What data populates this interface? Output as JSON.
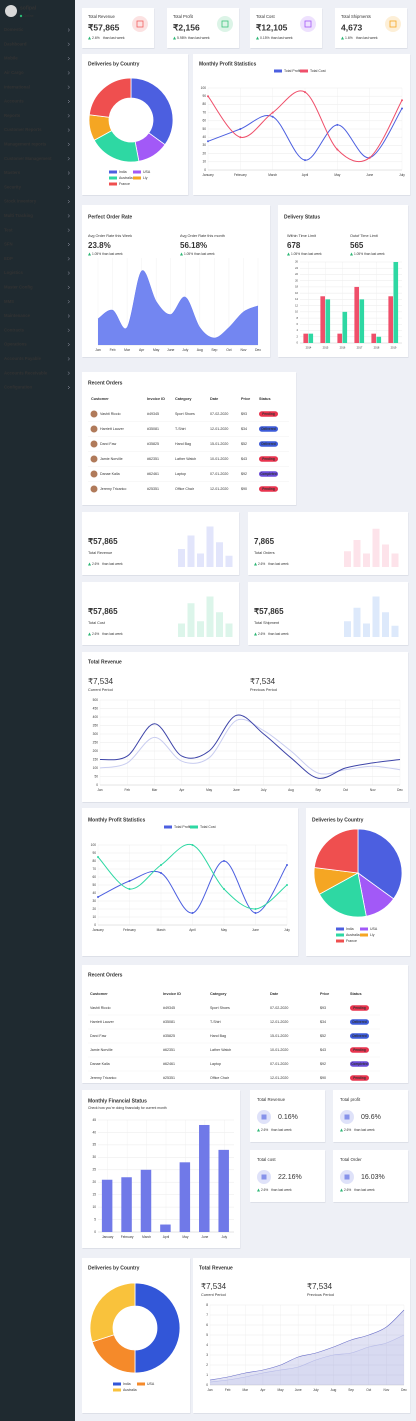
{
  "sidebar": {
    "user": "sofipal",
    "status": "Online",
    "items": [
      "Domestic",
      "Dashboard",
      "Mobile",
      "Air Cargo",
      "International",
      "Accounts",
      "Reports",
      "Customer Reports",
      "Management reports",
      "Customer Management",
      "Masters",
      "Security",
      "Stock Inventory",
      "Multi Tracking",
      "Test",
      "SFN",
      "EDP",
      "Logistics",
      "Master Config",
      "MMS",
      "Maintenance",
      "Contracts",
      "Operations",
      "Accounts Payable",
      "Accounts Receivable",
      "Configuration"
    ]
  },
  "stat_cards": [
    {
      "title": "Total Revenue",
      "value": "₹57,865",
      "change": "2.6%",
      "note": "than last week",
      "color": "#f06060"
    },
    {
      "title": "Total Profit",
      "value": "₹2,156",
      "change": "5.98%",
      "note": "than last week",
      "color": "#3cc47c"
    },
    {
      "title": "Total Cost",
      "value": "₹12,105",
      "change": "0.15%",
      "note": "than last week",
      "color": "#a259f7"
    },
    {
      "title": "Total Shipments",
      "value": "4,673",
      "change": "1.6%",
      "note": "than last week",
      "color": "#f5a623"
    }
  ],
  "deliveries_top": {
    "type": "donut",
    "title": "Deliveries by Country",
    "categories": [
      "India",
      "USA",
      "Australia",
      "Lly",
      "France"
    ],
    "values": [
      35,
      12,
      20,
      10,
      23
    ],
    "colors": [
      "#4c5fe0",
      "#a259f7",
      "#2ed8a3",
      "#f5a623",
      "#ef4f4f"
    ]
  },
  "profit_top": {
    "type": "line",
    "title": "Monthly Profit Statistics",
    "categories": [
      "January",
      "February",
      "March",
      "April",
      "May",
      "June",
      "July"
    ],
    "series": [
      {
        "name": "Total Profit",
        "color": "#4c5fe0",
        "values": [
          35,
          50,
          65,
          12,
          55,
          15,
          75
        ]
      },
      {
        "name": "Total Cost",
        "color": "#ef4f6a",
        "values": [
          90,
          40,
          70,
          95,
          25,
          15,
          85
        ]
      }
    ],
    "ylim": [
      0,
      100
    ],
    "yticks": [
      0,
      10,
      20,
      30,
      40,
      50,
      60,
      70,
      80,
      90,
      100
    ],
    "grid": true
  },
  "order_rate": {
    "type": "area",
    "title": "Perfect Order Rate",
    "metrics": [
      {
        "label": "Avg Order Rate this Week",
        "value": "23.8%",
        "change": "1.05%",
        "note": "than last week"
      },
      {
        "label": "Avg Order Rate this month",
        "value": "56.18%",
        "change": "1.05%",
        "note": "than last week"
      }
    ],
    "categories": [
      "Jan",
      "Feb",
      "Mar",
      "Apr",
      "May",
      "June",
      "July",
      "Aug",
      "Sep",
      "Oct",
      "Nov",
      "Dec"
    ],
    "values": [
      30,
      40,
      20,
      85,
      50,
      35,
      55,
      20,
      8,
      20,
      38,
      45
    ],
    "color": "#6b7ff0",
    "fill_opacity": 0.95,
    "ylim": [
      0,
      100
    ],
    "grid": true
  },
  "delivery_status": {
    "type": "bar",
    "title": "Delivery Status",
    "metrics": [
      {
        "label": "Within Time Limit",
        "value": "678",
        "change": "1.05%",
        "note": "than last week"
      },
      {
        "label": "Outof Time Limit",
        "value": "565",
        "change": "1.05%",
        "note": "than last week"
      }
    ],
    "categories": [
      "2014",
      "2015",
      "2016",
      "2017",
      "2018",
      "2019"
    ],
    "series": [
      {
        "color": "#ef4f6a",
        "values": [
          3,
          15,
          3,
          18,
          3,
          15
        ]
      },
      {
        "color": "#2ed8a3",
        "values": [
          3,
          14,
          10,
          14,
          2,
          26
        ]
      }
    ],
    "ylim": [
      0,
      26
    ],
    "yticks": [
      0,
      2,
      4,
      6,
      8,
      10,
      12,
      14,
      16,
      18,
      20,
      22,
      24,
      26
    ],
    "grid": true
  },
  "status_colors": {
    "Pending": "#e8344e",
    "Delivered": "#3d5bd9",
    "Completed": "#6a4cd9"
  },
  "orders_top": {
    "title": "Recent Orders",
    "columns": [
      "Customer",
      "Invoice ID",
      "Category",
      "Date",
      "Price",
      "Status"
    ],
    "rows": [
      [
        "Vashti Riccio",
        "#49345",
        "Sport Shoes",
        "07-02-2020",
        "$93",
        "Pending"
      ],
      [
        "Harriett Lauver",
        "#35081",
        "T-Shirt",
        "12-01-2020",
        "$34",
        "Delivered"
      ],
      [
        "Darci Faw",
        "#35825",
        "Hand Bag",
        "15-01-2020",
        "$52",
        "Delivered"
      ],
      [
        "Jamie Norville",
        "#62351",
        "Lather Watch",
        "10-01-2020",
        "$43",
        "Pending"
      ],
      [
        "Danae Kalla",
        "#62461",
        "Laptop",
        "07-01-2020",
        "$92",
        "Completed"
      ],
      [
        "Jeremy Tricarico",
        "#25351",
        "Office Chair",
        "12-01-2020",
        "$90",
        "Pending"
      ]
    ]
  },
  "mini_cards": [
    {
      "value": "₹57,865",
      "label": "Total Revenue",
      "change": "2.6%",
      "note": "than last week",
      "color": "#e2e5fb",
      "values": [
        40,
        70,
        30,
        90,
        55,
        25
      ],
      "ylim": [
        0,
        100
      ]
    },
    {
      "value": "7,865",
      "label": "Total Orders",
      "change": "2.6%",
      "note": "than last week",
      "color": "#fde3ea",
      "values": [
        35,
        60,
        30,
        85,
        50,
        30
      ],
      "ylim": [
        0,
        100
      ]
    },
    {
      "value": "₹57,865",
      "label": "Total Cost",
      "change": "2.6%",
      "note": "than last week",
      "color": "#dcf5ea",
      "values": [
        30,
        75,
        35,
        90,
        55,
        30
      ],
      "ylim": [
        0,
        100
      ]
    },
    {
      "value": "₹57,865",
      "label": "Total Shipment",
      "change": "2.6%",
      "note": "than last week",
      "color": "#dde9fb",
      "values": [
        35,
        65,
        30,
        90,
        55,
        25
      ],
      "ylim": [
        0,
        100
      ]
    }
  ],
  "revenue_full": {
    "type": "line",
    "title": "Total Revenue",
    "periods": [
      {
        "value": "₹7,534",
        "label": "Current Period"
      },
      {
        "value": "₹7,534",
        "label": "Previous Period"
      }
    ],
    "categories": [
      "Jan",
      "Feb",
      "Mar",
      "Apr",
      "May",
      "June",
      "July",
      "Aug",
      "Sep",
      "Oct",
      "Nov",
      "Dec"
    ],
    "series": [
      {
        "color": "#c9cdf0",
        "values": [
          100,
          130,
          280,
          140,
          160,
          380,
          320,
          200,
          70,
          90,
          110,
          90
        ]
      },
      {
        "color": "#3d44a8",
        "values": [
          150,
          170,
          360,
          170,
          200,
          410,
          300,
          160,
          40,
          100,
          130,
          150
        ]
      }
    ],
    "ylim": [
      0,
      500
    ],
    "yticks": [
      0,
      50,
      100,
      150,
      200,
      250,
      300,
      350,
      400,
      450,
      500
    ],
    "grid": true
  },
  "profit_mid": {
    "type": "line",
    "title": "Monthly Profit Statistics",
    "categories": [
      "January",
      "February",
      "March",
      "April",
      "May",
      "June",
      "July"
    ],
    "series": [
      {
        "name": "Total Profit",
        "color": "#4c5fe0",
        "values": [
          35,
          55,
          65,
          15,
          80,
          15,
          75
        ]
      },
      {
        "name": "Total Cost",
        "color": "#2ed8a3",
        "values": [
          85,
          45,
          75,
          100,
          45,
          20,
          50
        ]
      }
    ],
    "ylim": [
      0,
      100
    ],
    "yticks": [
      0,
      10,
      20,
      30,
      40,
      50,
      60,
      70,
      80,
      90,
      100
    ],
    "grid": true
  },
  "deliveries_mid": {
    "type": "pie",
    "title": "Deliveries by Country",
    "categories": [
      "India",
      "USA",
      "Australia",
      "Lly",
      "France"
    ],
    "values": [
      35,
      12,
      20,
      10,
      23
    ],
    "colors": [
      "#4c5fe0",
      "#a259f7",
      "#2ed8a3",
      "#f5a623",
      "#ef4f4f"
    ]
  },
  "orders_full": {
    "title": "Recent Orders",
    "columns": [
      "Customer",
      "Invoice ID",
      "Category",
      "Date",
      "Price",
      "Status"
    ],
    "rows": [
      [
        "Vashti Riccio",
        "#49345",
        "Sport Shoes",
        "07-02-2020",
        "$93",
        "Pending"
      ],
      [
        "Harriett Lauver",
        "#35081",
        "T-Shirt",
        "12-01-2020",
        "$34",
        "Delivered"
      ],
      [
        "Darci Faw",
        "#35825",
        "Hand Bag",
        "15-01-2020",
        "$52",
        "Delivered"
      ],
      [
        "Jamie Norville",
        "#62351",
        "Lather Watch",
        "10-01-2020",
        "$43",
        "Pending"
      ],
      [
        "Danae Kalla",
        "#62461",
        "Laptop",
        "07-01-2020",
        "$92",
        "Completed"
      ],
      [
        "Jeremy Tricarico",
        "#25351",
        "Office Chair",
        "12-01-2020",
        "$90",
        "Pending"
      ]
    ]
  },
  "financial": {
    "type": "bar",
    "title": "Monthly Financial Status",
    "subtitle": "Check how you're doing financially for current month",
    "categories": [
      "January",
      "February",
      "March",
      "April",
      "May",
      "June",
      "July"
    ],
    "values": [
      21,
      22,
      25,
      3,
      28,
      43,
      33
    ],
    "color": "#7079e8",
    "ylim": [
      0,
      45
    ],
    "yticks": [
      0,
      5,
      10,
      15,
      20,
      25,
      30,
      35,
      40,
      45
    ],
    "grid": true
  },
  "small_stats": [
    {
      "title": "Total Revenue",
      "value": "0.16%",
      "change": "2.6%",
      "note": "than last week",
      "color": "#4c5fe0"
    },
    {
      "title": "Total profit",
      "value": "09.6%",
      "change": "2.6%",
      "note": "than last week",
      "color": "#4c5fe0"
    },
    {
      "title": "Total cost",
      "value": "22.16%",
      "change": "2.6%",
      "note": "than last week",
      "color": "#4c5fe0"
    },
    {
      "title": "Total Order",
      "value": "16.03%",
      "change": "2.6%",
      "note": "than last week",
      "color": "#4c5fe0"
    }
  ],
  "deliveries_bottom": {
    "type": "donut",
    "title": "Deliveries by Country",
    "categories": [
      "India",
      "USA",
      "Australia"
    ],
    "values": [
      50,
      20,
      30
    ],
    "colors": [
      "#3256d8",
      "#f58a2a",
      "#f9c23c"
    ]
  },
  "revenue_bottom": {
    "type": "area",
    "title": "Total Revenue",
    "periods": [
      {
        "value": "₹7,534",
        "label": "Current Period"
      },
      {
        "value": "₹7,534",
        "label": "Previous Period"
      }
    ],
    "categories": [
      "Jan",
      "Feb",
      "Mar",
      "Apr",
      "May",
      "June",
      "July",
      "Aug",
      "Sep",
      "Oct",
      "Nov",
      "Dec"
    ],
    "series": [
      {
        "color": "#c9cdf0",
        "values": [
          0.3,
          0.5,
          0.8,
          1.2,
          1.5,
          1.8,
          2.5,
          3,
          3.2,
          3.8,
          4.2,
          5
        ]
      },
      {
        "color": "#6b70c8",
        "values": [
          0.5,
          0.8,
          1.2,
          1.5,
          2,
          2.8,
          3.2,
          3.8,
          4.5,
          5,
          5.8,
          7.5
        ]
      }
    ],
    "fill_opacity": 0.2,
    "ylim": [
      0,
      8
    ],
    "yticks": [
      0,
      1,
      2,
      3,
      4,
      5,
      6,
      7,
      8
    ],
    "grid": true
  }
}
